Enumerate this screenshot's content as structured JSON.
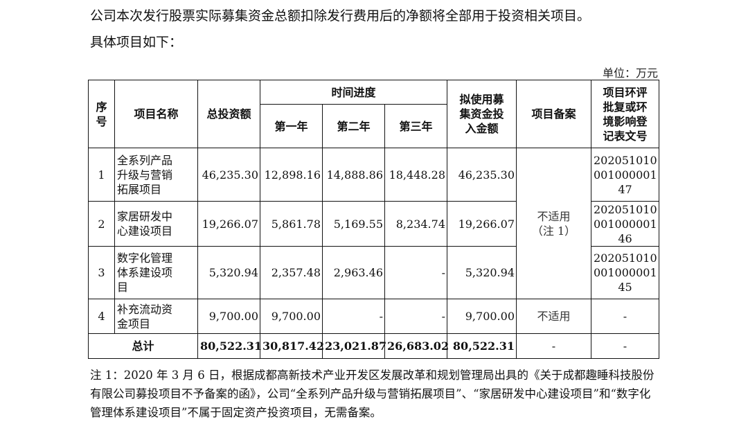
{
  "intro": [
    "公司本次发行股票实际募集资金总额扣除发行费用后的净额将全部用于投资相关项目。",
    "具体项目如下："
  ],
  "unit": "单位：万元",
  "headers": {
    "seq": "序\n号",
    "name": "项目名称",
    "total": "总投资额",
    "schedule": "时间进度",
    "year1": "第一年",
    "year2": "第二年",
    "year3": "第三年",
    "planned": "拟使用募\n集资金投\n入金额",
    "filing": "项目备案",
    "env": "项目环评\n批复或环\n境影响登\n记表文号"
  },
  "rows": [
    {
      "seq": "1",
      "name": "全系列产品\n升级与营销\n拓展项目",
      "total": "46,235.30",
      "y1": "12,898.16",
      "y2": "14,888.86",
      "y3": "18,448.28",
      "planned": "46,235.30",
      "env": "202051010\n001000001\n47"
    },
    {
      "seq": "2",
      "name": "家居研发中\n心建设项目",
      "total": "19,266.07",
      "y1": "5,861.78",
      "y2": "5,169.55",
      "y3": "8,234.74",
      "planned": "19,266.07",
      "env": "202051010\n001000001\n46"
    },
    {
      "seq": "3",
      "name": "数字化管理\n体系建设项\n目",
      "total": "5,320.94",
      "y1": "2,357.48",
      "y2": "2,963.46",
      "y3": "-",
      "planned": "5,320.94",
      "env": "202051010\n001000001\n45"
    },
    {
      "seq": "4",
      "name": "补充流动资\n金项目",
      "total": "9,700.00",
      "y1": "9,700.00",
      "y2": "-",
      "y3": "-",
      "planned": "9,700.00",
      "filing": "不适用",
      "env": "-"
    }
  ],
  "filing_merged": "不适用\n（注 1）",
  "total_row": {
    "label": "总计",
    "total": "80,522.31",
    "y1": "30,817.42",
    "y2": "23,021.87",
    "y3": "26,683.02",
    "planned": "80,522.31",
    "filing": "-",
    "env": "-"
  },
  "note": "注 1：2020 年 3 月 6 日，根据成都高新技术产业开发区发展改革和规划管理局出具的《关于成都趣睡科技股份有限公司募投项目不予备案的函》，公司“全系列产品升级与营销拓展项目”、“家居研发中心建设项目”和“数字化管理体系建设项目”不属于固定资产投资项目，无需备案。"
}
